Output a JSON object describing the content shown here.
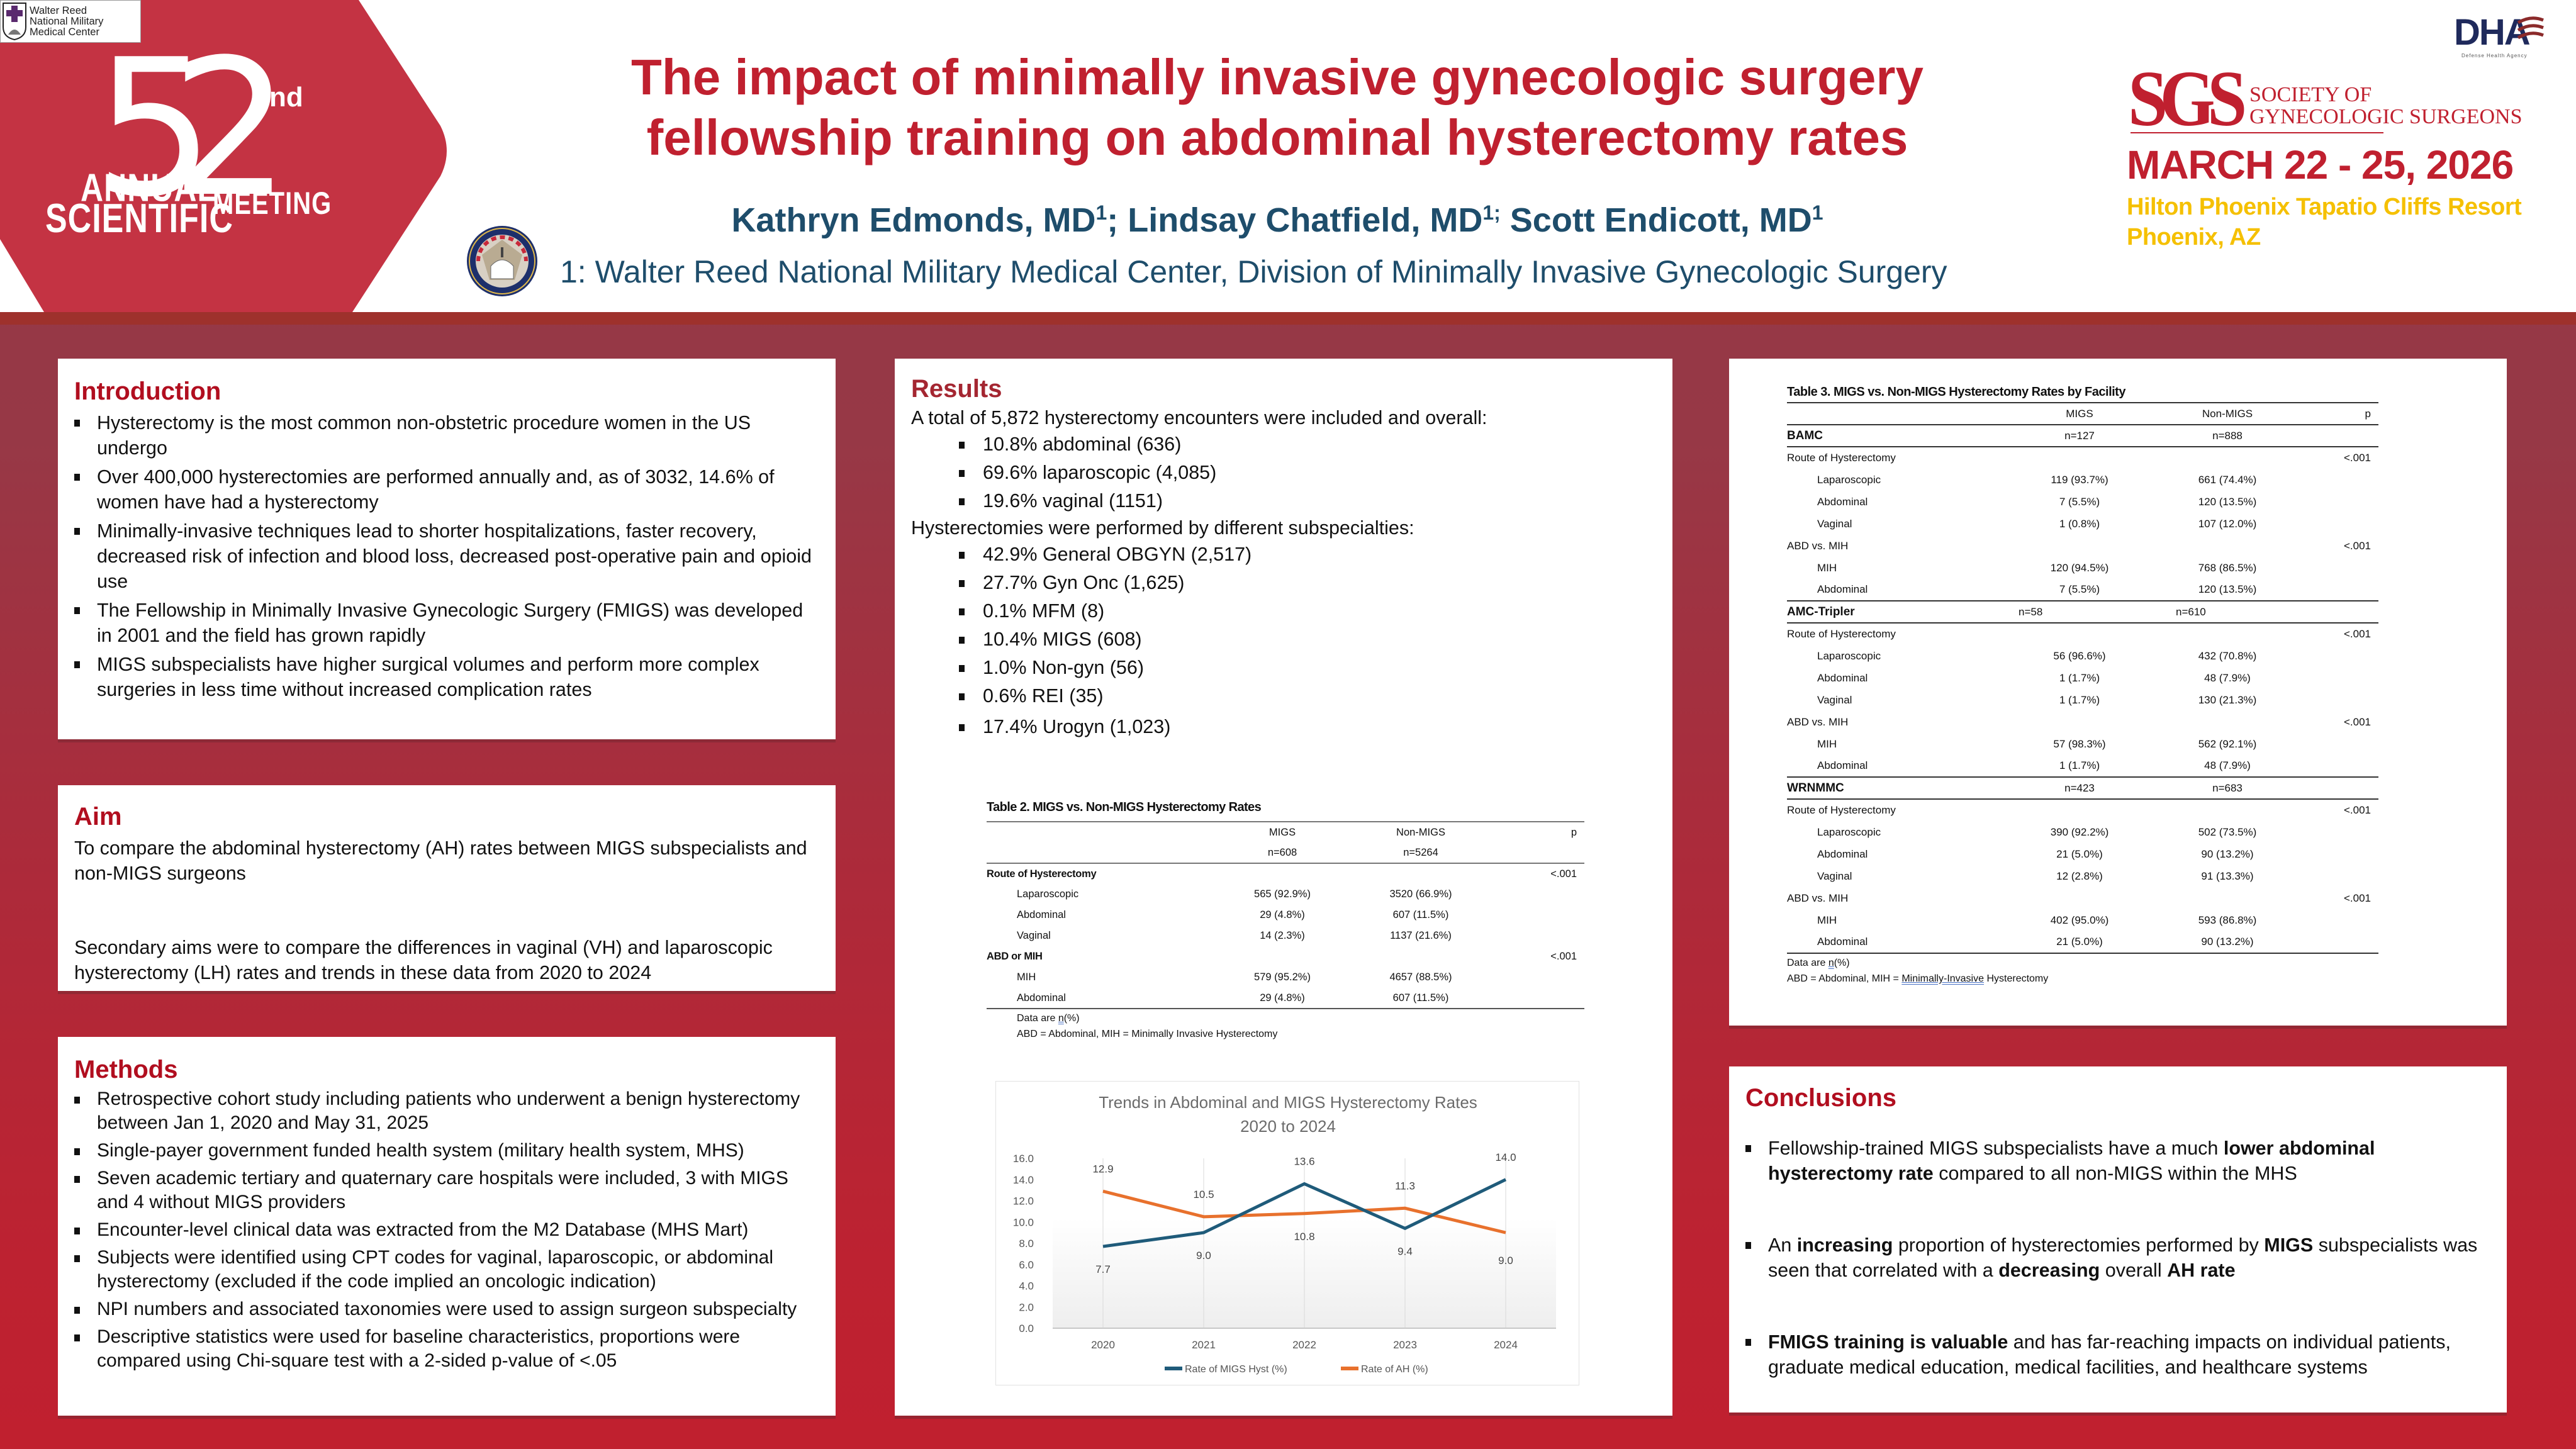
{
  "header": {
    "title_line1": "The impact of minimally invasive gynecologic surgery",
    "title_line2": "fellowship training on abdominal hysterectomy rates",
    "authors": [
      {
        "name": "Kathryn Edmonds, MD",
        "sup": "1",
        "sep": "; "
      },
      {
        "name": "Lindsay Chatfield, MD",
        "sup": "1;",
        "sep": " "
      },
      {
        "name": "Scott Endicott, MD",
        "sup": "1",
        "sep": ""
      }
    ],
    "affiliation": "1: Walter Reed National Military Medical Center, Division of Minimally Invasive Gynecologic Surgery",
    "walter_reed_logo": {
      "line1": "Walter Reed",
      "line2": "National Military",
      "line3": "Medical Center",
      "icon": "shield-cross-icon"
    },
    "badge": {
      "number": "52",
      "suffix": "nd",
      "word1": "ANNUAL",
      "word2": "SCIENTIFIC",
      "word3": "MEETING",
      "color": "#c43343"
    },
    "seal": {
      "label": "NATIONAL CAPITAL CONSORTIUM",
      "year": "1996",
      "sub": "Graduate Medical Education",
      "icon": "capitol-seal-icon"
    },
    "dha": {
      "text": "DHA",
      "sub": "Defense Health Agency",
      "icon": "flag-stripes-icon"
    },
    "sgs": {
      "mark": "SGS",
      "name_line1": "SOCIETY OF",
      "name_line2": "GYNECOLOGIC SURGEONS"
    },
    "conference": {
      "date": "MARCH 22 - 25, 2026",
      "venue": "Hilton Phoenix Tapatio Cliffs Resort",
      "city": "Phoenix, AZ"
    },
    "colors": {
      "title_red": "#c0202f",
      "author_blue": "#1e4d6b",
      "venue_gold": "#f5c000",
      "bar": "#9e312c"
    }
  },
  "introduction": {
    "heading": "Introduction",
    "bullets": [
      "Hysterectomy is the most common non-obstetric procedure women in the US undergo",
      "Over 400,000 hysterectomies are performed annually and, as of 3032, 14.6% of women have had a hysterectomy",
      "Minimally-invasive techniques lead to shorter hospitalizations, faster recovery, decreased risk of infection and blood loss, decreased post-operative pain and opioid use",
      "The Fellowship in Minimally Invasive Gynecologic Surgery (FMIGS) was developed in 2001 and the field has grown rapidly",
      "MIGS subspecialists have higher surgical volumes and perform more complex surgeries in less time without increased complication rates"
    ]
  },
  "aim": {
    "heading": "Aim",
    "paragraphs": [
      "To compare the abdominal hysterectomy (AH) rates between MIGS subspecialists and non-MIGS surgeons",
      "Secondary aims were to compare the differences in vaginal (VH) and laparoscopic hysterectomy (LH) rates and trends in these data from 2020 to 2024"
    ]
  },
  "methods": {
    "heading": "Methods",
    "bullets": [
      "Retrospective cohort study including patients who underwent a benign hysterectomy between Jan 1, 2020 and May 31, 2025",
      "Single-payer government funded health system (military health system, MHS)",
      "Seven academic tertiary and quaternary care hospitals were included, 3 with MIGS and 4 without MIGS providers",
      "Encounter-level clinical data was extracted from the M2 Database (MHS Mart)",
      "Subjects were identified using CPT codes for vaginal, laparoscopic, or abdominal hysterectomy (excluded if the code implied an oncologic indication)",
      "NPI numbers and associated taxonomies were used to assign surgeon subspecialty",
      "Descriptive statistics were used for baseline characteristics, proportions were compared using Chi-square test with a 2-sided p-value of <.05"
    ]
  },
  "results": {
    "heading": "Results",
    "intro1": "A total of 5,872 hysterectomy encounters were included and overall:",
    "routes": [
      "10.8% abdominal (636)",
      "69.6% laparoscopic (4,085)",
      "19.6% vaginal (1151)"
    ],
    "intro2": "Hysterectomies were performed by different subspecialties:",
    "specialties": [
      "42.9% General OBGYN (2,517)",
      "27.7% Gyn Onc (1,625)",
      "0.1% MFM (8)",
      "10.4% MIGS (608)",
      "1.0% Non-gyn (56)",
      "0.6% REI (35)",
      "17.4% Urogyn (1,023)"
    ]
  },
  "table2": {
    "title": "Table 2. MIGS vs. Non-MIGS Hysterectomy Rates",
    "columns": [
      "",
      "MIGS",
      "Non-MIGS",
      "p"
    ],
    "n_row": [
      "",
      "n=608",
      "n=5264",
      ""
    ],
    "rows": [
      {
        "label": "Route of Hysterectomy",
        "migs": "",
        "non": "",
        "p": "<.001",
        "type": "group"
      },
      {
        "label": "Laparoscopic",
        "migs": "565 (92.9%)",
        "non": "3520 (66.9%)",
        "p": "",
        "type": "item"
      },
      {
        "label": "Abdominal",
        "migs": "29 (4.8%)",
        "non": "607 (11.5%)",
        "p": "",
        "type": "item"
      },
      {
        "label": "Vaginal",
        "migs": "14 (2.3%)",
        "non": "1137 (21.6%)",
        "p": "",
        "type": "item"
      },
      {
        "label": "ABD or MIH",
        "migs": "",
        "non": "",
        "p": "<.001",
        "type": "group"
      },
      {
        "label": "MIH",
        "migs": "579 (95.2%)",
        "non": "4657 (88.5%)",
        "p": "",
        "type": "item"
      },
      {
        "label": "Abdominal",
        "migs": "29 (4.8%)",
        "non": "607 (11.5%)",
        "p": "",
        "type": "item"
      }
    ],
    "note1_pre": "Data are ",
    "note1_u": "n",
    "note1_post": "(%)",
    "note2": "ABD = Abdominal, MIH = Minimally Invasive Hysterectomy"
  },
  "chart_data": {
    "type": "line",
    "title": "Trends in Abdominal and MIGS Hysterectomy Rates",
    "subtitle": "2020 to 2024",
    "categories": [
      "2020",
      "2021",
      "2022",
      "2023",
      "2024"
    ],
    "series": [
      {
        "name": "Rate of MIGS Hyst (%)",
        "values": [
          7.7,
          9.0,
          13.6,
          9.4,
          14.0
        ],
        "color": "#1f5b7a",
        "label_pos": "mixed"
      },
      {
        "name": "Rate of AH (%)",
        "values": [
          12.9,
          10.5,
          10.8,
          11.3,
          9.0
        ],
        "color": "#e8712d"
      }
    ],
    "labels": {
      "migs": [
        "7.7",
        "9.0",
        "13.6",
        "9.4",
        "14.0"
      ],
      "ah": [
        "12.9",
        "10.5",
        "10.8",
        "11.3",
        "9.0"
      ]
    },
    "yticks": [
      "0.0",
      "2.0",
      "4.0",
      "6.0",
      "8.0",
      "10.0",
      "12.0",
      "14.0",
      "16.0"
    ],
    "ylim": [
      0,
      16
    ],
    "xlabel": "",
    "ylabel": "",
    "grid": "vertical",
    "legend": "bottom"
  },
  "table3": {
    "title": "Table 3. MIGS vs. Non-MIGS Hysterectomy Rates by Facility",
    "columns": [
      "",
      "MIGS",
      "Non-MIGS",
      "p"
    ],
    "facilities": [
      {
        "name": "BAMC",
        "n_migs": "n=127",
        "n_non": "n=888",
        "rows": [
          {
            "label": "Route of Hysterectomy",
            "migs": "",
            "non": "",
            "p": "<.001",
            "type": "group"
          },
          {
            "label": "Laparoscopic",
            "migs": "119 (93.7%)",
            "non": "661 (74.4%)",
            "p": "",
            "type": "item"
          },
          {
            "label": "Abdominal",
            "migs": "7 (5.5%)",
            "non": "120 (13.5%)",
            "p": "",
            "type": "item"
          },
          {
            "label": "Vaginal",
            "migs": "1 (0.8%)",
            "non": "107 (12.0%)",
            "p": "",
            "type": "item"
          },
          {
            "label": "ABD vs. MIH",
            "migs": "",
            "non": "",
            "p": "<.001",
            "type": "group"
          },
          {
            "label": "MIH",
            "migs": "120 (94.5%)",
            "non": "768 (86.5%)",
            "p": "",
            "type": "item"
          },
          {
            "label": "Abdominal",
            "migs": "7 (5.5%)",
            "non": "120 (13.5%)",
            "p": "",
            "type": "item"
          }
        ]
      },
      {
        "name": "AMC-Tripler",
        "n_migs": "n=58",
        "n_non": "n=610",
        "rows": [
          {
            "label": "Route of Hysterectomy",
            "migs": "",
            "non": "",
            "p": "<.001",
            "type": "group"
          },
          {
            "label": "Laparoscopic",
            "migs": "56 (96.6%)",
            "non": "432 (70.8%)",
            "p": "",
            "type": "item"
          },
          {
            "label": "Abdominal",
            "migs": "1 (1.7%)",
            "non": "48 (7.9%)",
            "p": "",
            "type": "item"
          },
          {
            "label": "Vaginal",
            "migs": "1 (1.7%)",
            "non": "130 (21.3%)",
            "p": "",
            "type": "item"
          },
          {
            "label": "ABD vs. MIH",
            "migs": "",
            "non": "",
            "p": "<.001",
            "type": "group"
          },
          {
            "label": "MIH",
            "migs": "57 (98.3%)",
            "non": "562 (92.1%)",
            "p": "",
            "type": "item"
          },
          {
            "label": "Abdominal",
            "migs": "1 (1.7%)",
            "non": "48 (7.9%)",
            "p": "",
            "type": "item"
          }
        ]
      },
      {
        "name": "WRNMMC",
        "n_migs": "n=423",
        "n_non": "n=683",
        "rows": [
          {
            "label": "Route of Hysterectomy",
            "migs": "",
            "non": "",
            "p": "<.001",
            "type": "group"
          },
          {
            "label": "Laparoscopic",
            "migs": "390 (92.2%)",
            "non": "502 (73.5%)",
            "p": "",
            "type": "item"
          },
          {
            "label": "Abdominal",
            "migs": "21 (5.0%)",
            "non": "90 (13.2%)",
            "p": "",
            "type": "item"
          },
          {
            "label": "Vaginal",
            "migs": "12 (2.8%)",
            "non": "91 (13.3%)",
            "p": "",
            "type": "item"
          },
          {
            "label": "ABD vs. MIH",
            "migs": "",
            "non": "",
            "p": "<.001",
            "type": "group"
          },
          {
            "label": "MIH",
            "migs": "402 (95.0%)",
            "non": "593 (86.8%)",
            "p": "",
            "type": "item"
          },
          {
            "label": "Abdominal",
            "migs": "21 (5.0%)",
            "non": "90 (13.2%)",
            "p": "",
            "type": "item"
          }
        ]
      }
    ],
    "note1_pre": "Data are ",
    "note1_u": "n",
    "note1_post": "(%)",
    "note2_pre": "ABD = Abdominal, MIH = ",
    "note2_u": "Minimally-Invasive",
    "note2_post": " Hysterectomy"
  },
  "conclusions": {
    "heading": "Conclusions",
    "bullets": [
      [
        {
          "t": "Fellowship-trained MIGS subspecialists have a much ",
          "b": false
        },
        {
          "t": "lower abdominal hysterectomy rate",
          "b": true
        },
        {
          "t": " compared to all non-MIGS within the MHS",
          "b": false
        }
      ],
      [
        {
          "t": "An ",
          "b": false
        },
        {
          "t": "increasing",
          "b": true
        },
        {
          "t": " proportion of hysterectomies performed by ",
          "b": false
        },
        {
          "t": "MIGS",
          "b": true
        },
        {
          "t": " subspecialists was seen that correlated with a ",
          "b": false
        },
        {
          "t": "decreasing",
          "b": true
        },
        {
          "t": " overall ",
          "b": false
        },
        {
          "t": "AH rate",
          "b": true
        }
      ],
      [
        {
          "t": "FMIGS training is valuable",
          "b": true
        },
        {
          "t": " and has far-reaching impacts on individual patients, graduate medical education, medical facilities, and healthcare systems",
          "b": false
        }
      ]
    ]
  }
}
